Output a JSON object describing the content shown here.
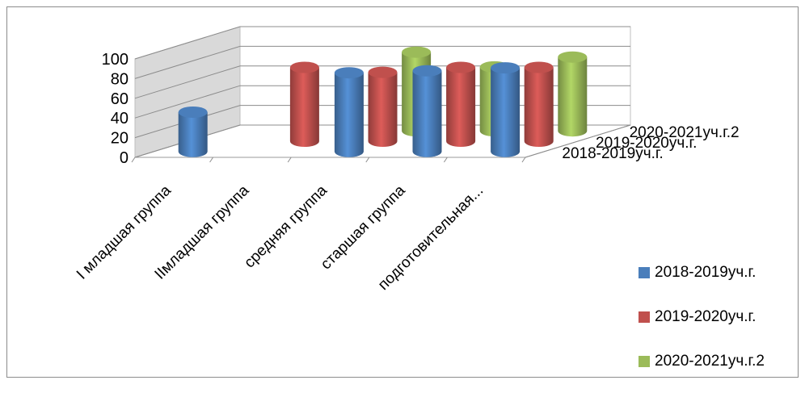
{
  "chart_data": {
    "type": "bar",
    "subtype": "3d-cylinder",
    "categories": [
      "I младшая группа",
      "IIмладшая группа",
      "средняя группа",
      "старшая группа",
      "подготовительная..."
    ],
    "series": [
      {
        "name": "2018-2019уч.г.",
        "color": "#4a7ebb",
        "values": [
          40,
          null,
          80,
          82,
          85
        ]
      },
      {
        "name": "2019-2020уч.г.",
        "color": "#c0504d",
        "values": [
          null,
          75,
          70,
          75,
          75
        ]
      },
      {
        "name": "2020-2021уч.г.2",
        "color": "#9bbb59",
        "values": [
          null,
          null,
          80,
          65,
          75
        ]
      }
    ],
    "yticks": [
      "0",
      "20",
      "40",
      "60",
      "80",
      "100"
    ],
    "ylim": [
      0,
      100
    ],
    "depth_labels": [
      "2020-2021уч.г.2",
      "2019-2020уч.г.",
      "2018-2019уч.г."
    ],
    "grid": true,
    "legend_position": "right-bottom"
  }
}
